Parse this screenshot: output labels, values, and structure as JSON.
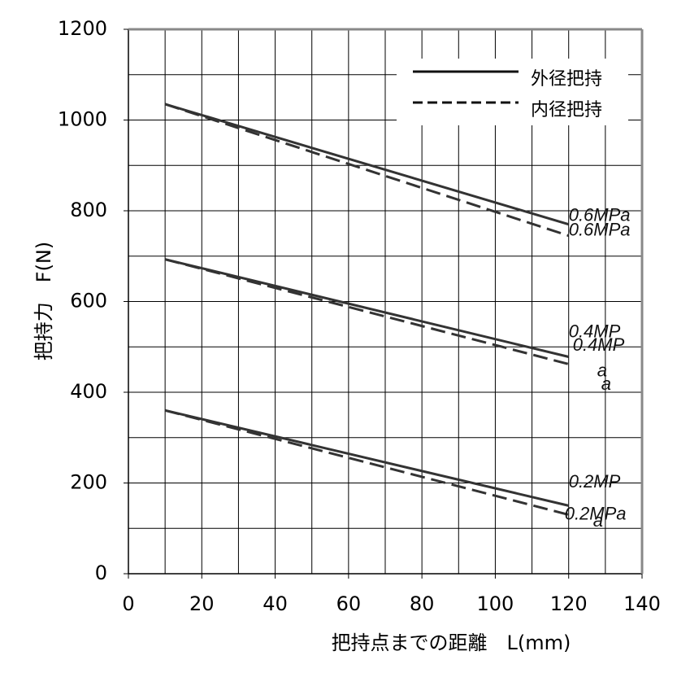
{
  "chart_data": {
    "type": "line",
    "xlabel": "把持点までの距離　L(mm)",
    "ylabel": "把持力　F(N)",
    "xlim": [
      0,
      140
    ],
    "xticks": [
      0,
      20,
      40,
      60,
      80,
      100,
      120,
      140
    ],
    "ylim": [
      0,
      1200
    ],
    "yticks": [
      0,
      200,
      400,
      600,
      800,
      1000,
      1200
    ],
    "grid": true,
    "legend": [
      {
        "name": "外径把持",
        "style": "solid"
      },
      {
        "name": "内径把持",
        "style": "dashed"
      }
    ],
    "legend_position": "upper right",
    "series": [
      {
        "style": "solid",
        "color": "#333333",
        "x": [
          10,
          120
        ],
        "values": [
          1035,
          770
        ],
        "label_lines": [
          "0.6MPa"
        ]
      },
      {
        "style": "dashed",
        "color": "#333333",
        "x": [
          10,
          120
        ],
        "values": [
          1035,
          745
        ],
        "label_lines": [
          "0.6MPa"
        ]
      },
      {
        "style": "solid",
        "color": "#333333",
        "x": [
          10,
          120
        ],
        "values": [
          693,
          478
        ],
        "label_lines": [
          "0.4MP",
          "a"
        ]
      },
      {
        "style": "dashed",
        "color": "#333333",
        "x": [
          10,
          120
        ],
        "values": [
          693,
          462
        ],
        "label_lines": [
          "0.4MP",
          "a"
        ]
      },
      {
        "style": "solid",
        "color": "#333333",
        "x": [
          10,
          120
        ],
        "values": [
          360,
          150
        ],
        "label_lines": [
          "0.2MP",
          "a"
        ]
      },
      {
        "style": "dashed",
        "color": "#333333",
        "x": [
          10,
          120
        ],
        "values": [
          360,
          130
        ],
        "label_lines": [
          "0.2MPa"
        ]
      }
    ]
  }
}
